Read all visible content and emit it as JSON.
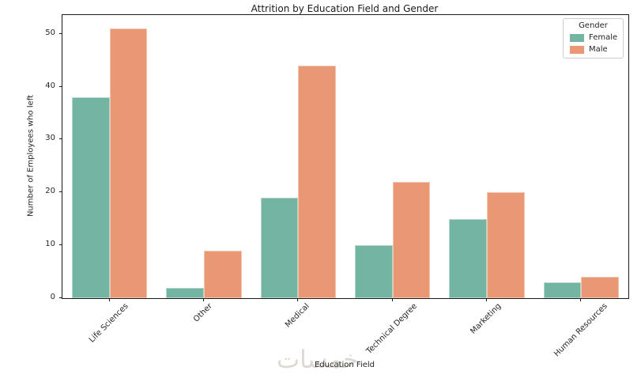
{
  "figure": {
    "watermark": "خمسات"
  },
  "chart_data": {
    "type": "bar",
    "title": "Attrition by Education Field and Gender",
    "xlabel": "Education Field",
    "ylabel": "Number of Employees who left",
    "categories": [
      "Life Sciences",
      "Other",
      "Medical",
      "Technical Degree",
      "Marketing",
      "Human Resources"
    ],
    "series": [
      {
        "name": "Female",
        "color": "#73b5a2",
        "values": [
          38,
          2,
          19,
          10,
          15,
          3
        ]
      },
      {
        "name": "Male",
        "color": "#ea9874",
        "values": [
          51,
          9,
          44,
          22,
          20,
          4
        ]
      }
    ],
    "yticks": [
      0,
      10,
      20,
      30,
      40,
      50
    ],
    "ylim": [
      0,
      53.55
    ],
    "xtick_rotation": 45,
    "grid": false,
    "legend": {
      "title": "Gender",
      "position": "upper right"
    }
  }
}
